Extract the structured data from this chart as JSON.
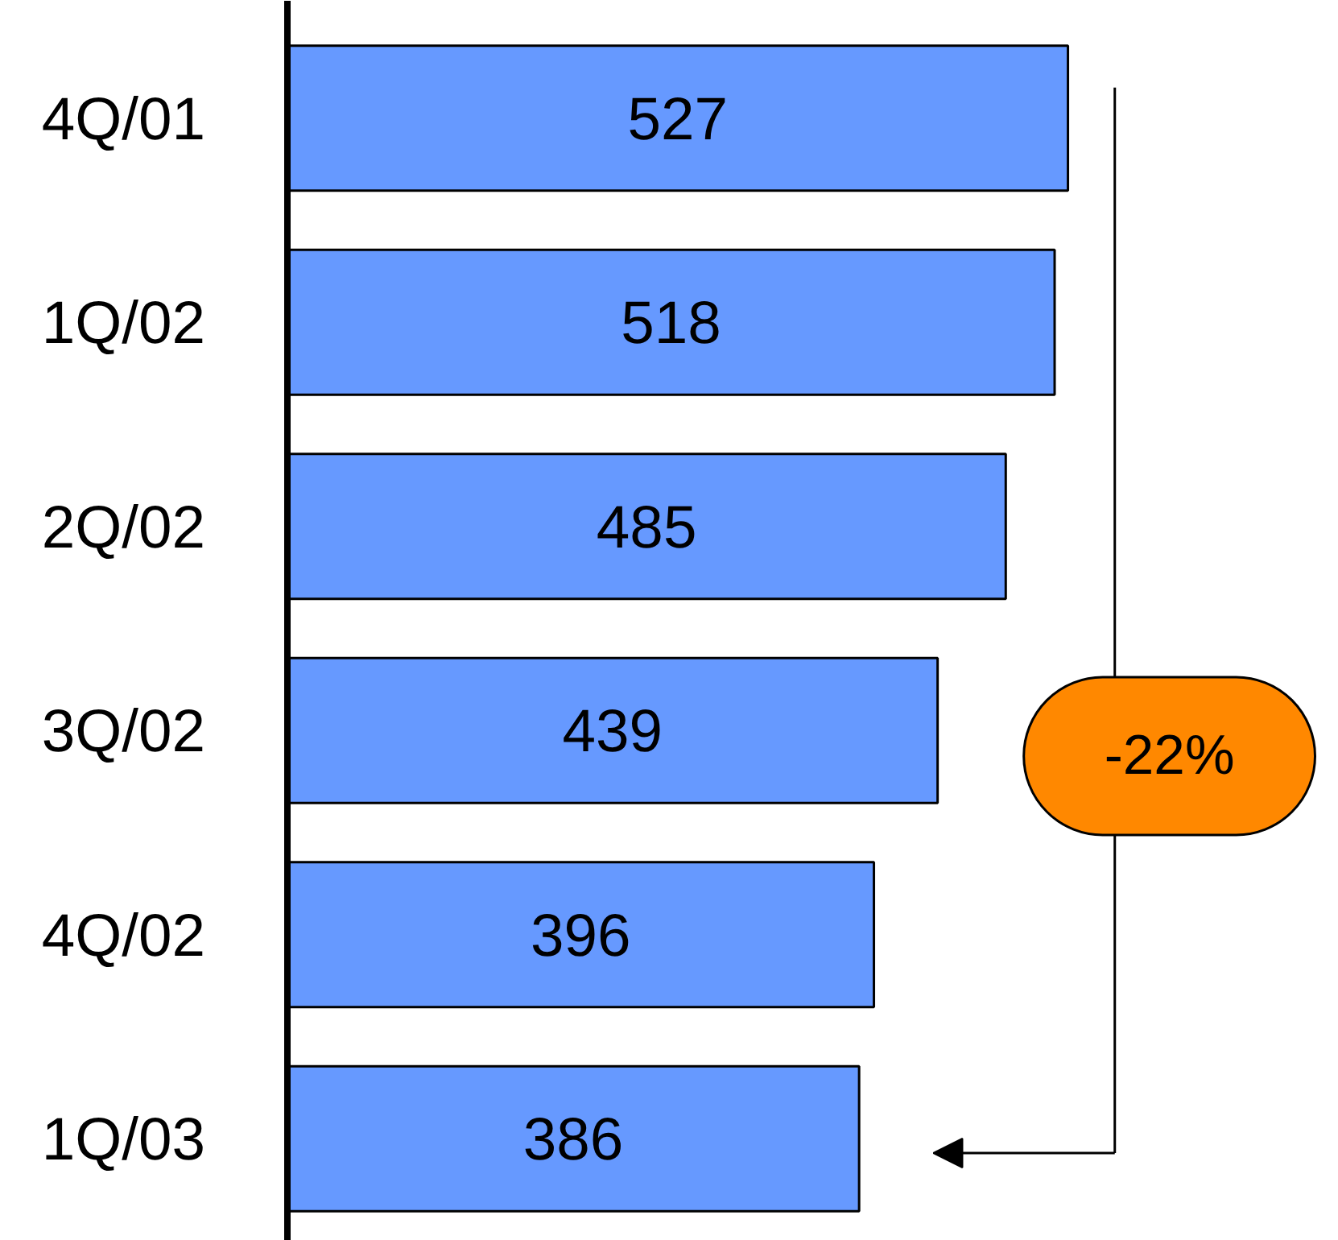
{
  "chart_data": {
    "type": "bar",
    "orientation": "horizontal",
    "categories": [
      "4Q/01",
      "1Q/02",
      "2Q/02",
      "3Q/02",
      "4Q/02",
      "1Q/03"
    ],
    "values": [
      527,
      518,
      485,
      439,
      396,
      386
    ],
    "color": "#6699ff",
    "data_labels": true,
    "grid": false,
    "annotations": [
      "-22%"
    ]
  }
}
